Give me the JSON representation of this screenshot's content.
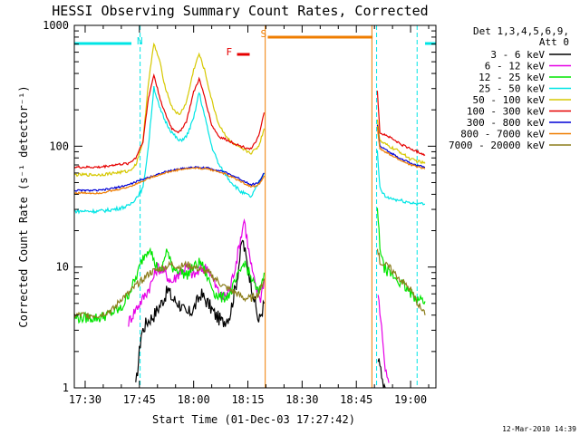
{
  "chart_data": {
    "type": "line",
    "title": "HESSI Observing Summary Count Rates, Corrected",
    "xlabel": "Start Time (01-Dec-03 17:27:42)",
    "ylabel": "Corrected Count Rate (s⁻¹ detector⁻¹)",
    "yscale": "log",
    "ylim": [
      1,
      1000
    ],
    "xlim_minutes": [
      -3,
      97
    ],
    "x_ticks": [
      {
        "label": "17:30",
        "min": 0
      },
      {
        "label": "17:45",
        "min": 15
      },
      {
        "label": "18:00",
        "min": 30
      },
      {
        "label": "18:15",
        "min": 45
      },
      {
        "label": "18:30",
        "min": 60
      },
      {
        "label": "18:45",
        "min": 75
      },
      {
        "label": "19:00",
        "min": 90
      }
    ],
    "y_ticks": [
      {
        "label": "1",
        "value": 1
      },
      {
        "label": "10",
        "value": 10
      },
      {
        "label": "100",
        "value": 100
      },
      {
        "label": "1000",
        "value": 1000
      }
    ],
    "legend_title": [
      "Det 1,3,4,5,6,9,",
      "Att 0"
    ],
    "legend_placement": "right",
    "footer_date": "12-Mar-2010 14:39",
    "flags": [
      {
        "label": "N",
        "color": "#00e5e5",
        "bars": [
          [
            -3,
            12.8
          ],
          [
            94,
            97
          ]
        ],
        "dividers": [
          15.2,
          91.8,
          80.6
        ]
      },
      {
        "label": "S",
        "color": "#ef7d00",
        "bars": [
          [
            50.5,
            79.5
          ]
        ],
        "dividers": [
          49.8,
          79.3
        ]
      },
      {
        "label": "F",
        "color": "#e60000",
        "bars": [
          [
            42,
            45.5
          ]
        ],
        "dividers": []
      }
    ],
    "gap_minutes": [
      50,
      80.5
    ],
    "series": [
      {
        "name": "3 - 6 keV",
        "color": "#000000",
        "points": [
          [
            14,
            1
          ],
          [
            15.5,
            2.8
          ],
          [
            17,
            3.5
          ],
          [
            19,
            4
          ],
          [
            21,
            5
          ],
          [
            23,
            6.5
          ],
          [
            24,
            5.5
          ],
          [
            26,
            5
          ],
          [
            28,
            4
          ],
          [
            30,
            4.5
          ],
          [
            32,
            6
          ],
          [
            34,
            5
          ],
          [
            36,
            4
          ],
          [
            38,
            3.5
          ],
          [
            40,
            4
          ],
          [
            42,
            8
          ],
          [
            43.5,
            17
          ],
          [
            45,
            10
          ],
          [
            46.5,
            6
          ],
          [
            48,
            3.5
          ],
          [
            49.5,
            5
          ]
        ],
        "points2": [
          [
            81,
            1.8
          ],
          [
            82,
            1.2
          ],
          [
            83,
            1
          ]
        ]
      },
      {
        "name": "6 - 12 keV",
        "color": "#e600e6",
        "points": [
          [
            12,
            3.5
          ],
          [
            14,
            4.5
          ],
          [
            16,
            5.5
          ],
          [
            18,
            7
          ],
          [
            20,
            10
          ],
          [
            22,
            9
          ],
          [
            24,
            7.5
          ],
          [
            26,
            9
          ],
          [
            28,
            10
          ],
          [
            30,
            8.5
          ],
          [
            32,
            9.5
          ],
          [
            34,
            10
          ],
          [
            36,
            7
          ],
          [
            38,
            5.5
          ],
          [
            40,
            6.5
          ],
          [
            42,
            12
          ],
          [
            44,
            25
          ],
          [
            45.5,
            12
          ],
          [
            47,
            7
          ],
          [
            48.5,
            5.5
          ],
          [
            49.5,
            8
          ]
        ],
        "points2": [
          [
            81,
            6
          ],
          [
            82,
            3
          ],
          [
            83,
            1.5
          ],
          [
            84,
            1.1
          ]
        ]
      },
      {
        "name": "12 - 25 keV",
        "color": "#00e600",
        "points": [
          [
            -3,
            3.8
          ],
          [
            4,
            3.8
          ],
          [
            10,
            4.5
          ],
          [
            12,
            6
          ],
          [
            14,
            8
          ],
          [
            16,
            12
          ],
          [
            18,
            15
          ],
          [
            19,
            11
          ],
          [
            21,
            9
          ],
          [
            22.5,
            14
          ],
          [
            24,
            10
          ],
          [
            26,
            9.5
          ],
          [
            28,
            8.5
          ],
          [
            30,
            10
          ],
          [
            32,
            11
          ],
          [
            34,
            8
          ],
          [
            36,
            6
          ],
          [
            38,
            5.5
          ],
          [
            40,
            6
          ],
          [
            42,
            8
          ],
          [
            44,
            11
          ],
          [
            46,
            8
          ],
          [
            48,
            6
          ],
          [
            49.5,
            9
          ]
        ],
        "points2": [
          [
            80.8,
            30
          ],
          [
            81.5,
            15
          ],
          [
            82.5,
            10
          ],
          [
            84,
            9
          ],
          [
            86,
            8
          ],
          [
            88,
            7
          ],
          [
            90,
            6
          ],
          [
            92,
            5.5
          ],
          [
            94,
            5.2
          ]
        ]
      },
      {
        "name": "25 - 50 keV",
        "color": "#00e5e5",
        "points": [
          [
            -3,
            29
          ],
          [
            4,
            29
          ],
          [
            8,
            30
          ],
          [
            12,
            32
          ],
          [
            14,
            37
          ],
          [
            16,
            45
          ],
          [
            17.5,
            100
          ],
          [
            19,
            310
          ],
          [
            20.5,
            210
          ],
          [
            22,
            165
          ],
          [
            24,
            130
          ],
          [
            26,
            110
          ],
          [
            28,
            120
          ],
          [
            30,
            170
          ],
          [
            31.5,
            280
          ],
          [
            33,
            180
          ],
          [
            35,
            100
          ],
          [
            37,
            70
          ],
          [
            40,
            52
          ],
          [
            43,
            42
          ],
          [
            46,
            38
          ],
          [
            48,
            50
          ],
          [
            49.5,
            60
          ]
        ],
        "points2": [
          [
            80.8,
            90
          ],
          [
            81.5,
            45
          ],
          [
            83,
            38
          ],
          [
            86,
            36
          ],
          [
            90,
            34
          ],
          [
            94,
            33
          ]
        ]
      },
      {
        "name": "50 - 100 keV",
        "color": "#d6c800",
        "points": [
          [
            -3,
            58
          ],
          [
            4,
            58
          ],
          [
            8,
            60
          ],
          [
            12,
            62
          ],
          [
            14,
            70
          ],
          [
            16,
            110
          ],
          [
            17.5,
            340
          ],
          [
            19,
            700
          ],
          [
            20.5,
            520
          ],
          [
            22,
            320
          ],
          [
            24,
            210
          ],
          [
            26,
            180
          ],
          [
            28,
            230
          ],
          [
            30,
            430
          ],
          [
            31.5,
            580
          ],
          [
            33,
            430
          ],
          [
            35,
            240
          ],
          [
            37,
            150
          ],
          [
            40,
            110
          ],
          [
            43,
            95
          ],
          [
            46,
            88
          ],
          [
            48,
            100
          ],
          [
            49.5,
            140
          ]
        ],
        "points2": [
          [
            80.8,
            170
          ],
          [
            81.5,
            110
          ],
          [
            84,
            100
          ],
          [
            87,
            90
          ],
          [
            90,
            78
          ],
          [
            94,
            72
          ]
        ]
      },
      {
        "name": "100 - 300 keV",
        "color": "#e60000",
        "points": [
          [
            -3,
            67
          ],
          [
            4,
            67
          ],
          [
            8,
            70
          ],
          [
            12,
            72
          ],
          [
            14,
            80
          ],
          [
            16,
            110
          ],
          [
            17.5,
            250
          ],
          [
            19,
            390
          ],
          [
            20.5,
            260
          ],
          [
            22,
            190
          ],
          [
            24,
            140
          ],
          [
            26,
            130
          ],
          [
            28,
            160
          ],
          [
            30,
            280
          ],
          [
            31.5,
            360
          ],
          [
            33,
            260
          ],
          [
            35,
            150
          ],
          [
            37,
            120
          ],
          [
            40,
            110
          ],
          [
            43,
            100
          ],
          [
            46,
            95
          ],
          [
            48,
            120
          ],
          [
            49.5,
            190
          ]
        ],
        "points2": [
          [
            80.8,
            290
          ],
          [
            81.5,
            130
          ],
          [
            84,
            120
          ],
          [
            87,
            105
          ],
          [
            90,
            95
          ],
          [
            94,
            85
          ]
        ]
      },
      {
        "name": "300 - 800 keV",
        "color": "#0000d6",
        "points": [
          [
            -3,
            43
          ],
          [
            4,
            43
          ],
          [
            8,
            45
          ],
          [
            12,
            48
          ],
          [
            15,
            52
          ],
          [
            18,
            56
          ],
          [
            22,
            61
          ],
          [
            26,
            65
          ],
          [
            30,
            67
          ],
          [
            34,
            66
          ],
          [
            38,
            62
          ],
          [
            42,
            55
          ],
          [
            46,
            48
          ],
          [
            48,
            50
          ],
          [
            49.5,
            60
          ]
        ],
        "points2": [
          [
            80.8,
            150
          ],
          [
            81.5,
            100
          ],
          [
            84,
            90
          ],
          [
            87,
            80
          ],
          [
            90,
            72
          ],
          [
            94,
            67
          ]
        ]
      },
      {
        "name": "800 - 7000 keV",
        "color": "#ef7d00",
        "points": [
          [
            -3,
            41
          ],
          [
            4,
            41
          ],
          [
            8,
            43
          ],
          [
            12,
            46
          ],
          [
            15,
            50
          ],
          [
            18,
            55
          ],
          [
            22,
            60
          ],
          [
            26,
            64
          ],
          [
            30,
            66
          ],
          [
            34,
            65
          ],
          [
            38,
            60
          ],
          [
            42,
            53
          ],
          [
            46,
            46
          ],
          [
            48,
            48
          ],
          [
            49.5,
            57
          ]
        ],
        "points2": [
          [
            80.8,
            145
          ],
          [
            81.5,
            95
          ],
          [
            84,
            86
          ],
          [
            87,
            77
          ],
          [
            90,
            70
          ],
          [
            94,
            65
          ]
        ]
      },
      {
        "name": "7000 - 20000 keV",
        "color": "#8b7d1a",
        "points": [
          [
            -3,
            4
          ],
          [
            4,
            4
          ],
          [
            8,
            4.5
          ],
          [
            10,
            5.5
          ],
          [
            12,
            6
          ],
          [
            14,
            7
          ],
          [
            16,
            8
          ],
          [
            18,
            9
          ],
          [
            20,
            9.5
          ],
          [
            22,
            10
          ],
          [
            24,
            10.5
          ],
          [
            26,
            10
          ],
          [
            28,
            10.5
          ],
          [
            30,
            10
          ],
          [
            32,
            9.5
          ],
          [
            34,
            9
          ],
          [
            36,
            8
          ],
          [
            38,
            7
          ],
          [
            40,
            6.5
          ],
          [
            42,
            6
          ],
          [
            44,
            5.5
          ],
          [
            46,
            5.5
          ],
          [
            48,
            6
          ],
          [
            49.5,
            8
          ]
        ],
        "points2": [
          [
            80.8,
            15
          ],
          [
            81.5,
            11
          ],
          [
            84,
            10
          ],
          [
            87,
            8
          ],
          [
            90,
            6.5
          ],
          [
            92,
            5
          ],
          [
            94,
            4
          ]
        ]
      }
    ]
  }
}
